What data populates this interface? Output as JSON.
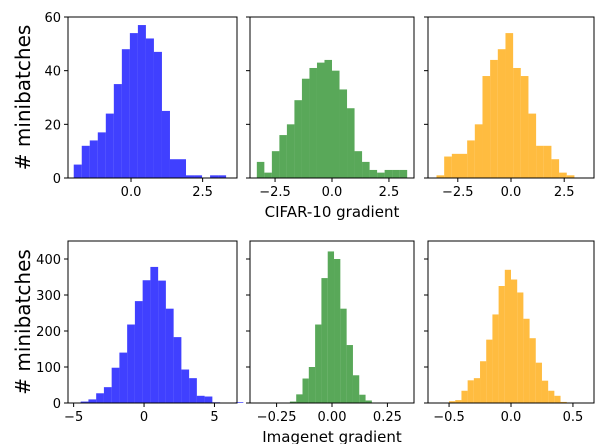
{
  "chart_data": [
    {
      "type": "bar",
      "ylabel": "# minibatches",
      "xlabel": "",
      "xlim": [
        -2.2,
        3.7
      ],
      "ylim": [
        0,
        60
      ],
      "xticks": [
        0.0,
        2.5
      ],
      "xtick_labels": [
        "0.0",
        "2.5"
      ],
      "yticks": [
        0,
        20,
        40,
        60
      ],
      "ytick_labels": [
        "0",
        "20",
        "40",
        "60"
      ],
      "color": "#0000ff",
      "bins": {
        "start": -2.0,
        "width": 0.28,
        "counts": [
          5,
          12,
          14,
          17,
          24,
          35,
          48,
          54,
          57,
          52,
          47,
          25,
          7,
          7,
          1,
          1,
          0,
          1,
          1
        ]
      }
    },
    {
      "type": "bar",
      "ylabel": "",
      "xlabel": "CIFAR-10 gradient",
      "xlim": [
        -3.6,
        3.6
      ],
      "ylim": [
        0,
        60
      ],
      "xticks": [
        -2.5,
        0.0,
        2.5
      ],
      "xtick_labels": [
        "−2.5",
        "0.0",
        "2.5"
      ],
      "yticks": [
        0,
        20,
        40,
        60
      ],
      "color": "#228b22",
      "bins": {
        "start": -3.3,
        "width": 0.33,
        "counts": [
          6,
          2,
          10,
          16,
          20,
          29,
          37,
          41,
          43,
          44,
          40,
          33,
          26,
          10,
          6,
          3,
          2,
          3,
          3,
          3
        ]
      }
    },
    {
      "type": "bar",
      "ylabel": "",
      "xlabel": "",
      "xlim": [
        -3.9,
        3.9
      ],
      "ylim": [
        0,
        60
      ],
      "xticks": [
        -2.5,
        0.0,
        2.5
      ],
      "xtick_labels": [
        "−2.5",
        "0.0",
        "2.5"
      ],
      "yticks": [
        0,
        20,
        40,
        60
      ],
      "color": "#ffa500",
      "bins": {
        "start": -3.5,
        "width": 0.36,
        "counts": [
          1,
          8,
          9,
          9,
          14,
          20,
          38,
          44,
          48,
          54,
          41,
          38,
          24,
          12,
          12,
          7,
          2,
          1
        ]
      }
    },
    {
      "type": "bar",
      "ylabel": "# minibatches",
      "xlabel": "",
      "xlim": [
        -5.4,
        6.6
      ],
      "ylim": [
        0,
        450
      ],
      "xticks": [
        -5,
        0,
        5
      ],
      "xtick_labels": [
        "−5",
        "0",
        "5"
      ],
      "yticks": [
        0,
        100,
        200,
        300,
        400
      ],
      "ytick_labels": [
        "0",
        "100",
        "200",
        "300",
        "400"
      ],
      "color": "#0000ff",
      "bins": {
        "start": -4.5,
        "width": 0.55,
        "counts": [
          4,
          10,
          27,
          44,
          98,
          140,
          218,
          283,
          341,
          378,
          340,
          262,
          183,
          93,
          69,
          20,
          18,
          2,
          0,
          0,
          2
        ]
      }
    },
    {
      "type": "bar",
      "ylabel": "",
      "xlabel": "Imagenet gradient",
      "xlim": [
        -0.37,
        0.37
      ],
      "ylim": [
        0,
        450
      ],
      "xticks": [
        -0.25,
        0.0,
        0.25
      ],
      "xtick_labels": [
        "−0.25",
        "0.00",
        "0.25"
      ],
      "yticks": [
        0,
        100,
        200,
        300,
        400
      ],
      "color": "#228b22",
      "bins": {
        "start": -0.19,
        "width": 0.02845,
        "counts": [
          4,
          24,
          68,
          100,
          218,
          347,
          421,
          400,
          262,
          161,
          77,
          23,
          7
        ]
      }
    },
    {
      "type": "bar",
      "ylabel": "",
      "xlabel": "",
      "xlim": [
        -0.67,
        0.67
      ],
      "ylim": [
        0,
        450
      ],
      "xticks": [
        -0.5,
        0.0,
        0.5
      ],
      "xtick_labels": [
        "−0.5",
        "0.0",
        "0.5"
      ],
      "yticks": [
        0,
        100,
        200,
        300,
        400
      ],
      "color": "#ffa500",
      "bins": {
        "start": -0.5,
        "width": 0.05,
        "counts": [
          5,
          8,
          34,
          63,
          69,
          116,
          176,
          246,
          325,
          370,
          343,
          307,
          234,
          180,
          112,
          62,
          34,
          20,
          3,
          0
        ]
      }
    }
  ]
}
